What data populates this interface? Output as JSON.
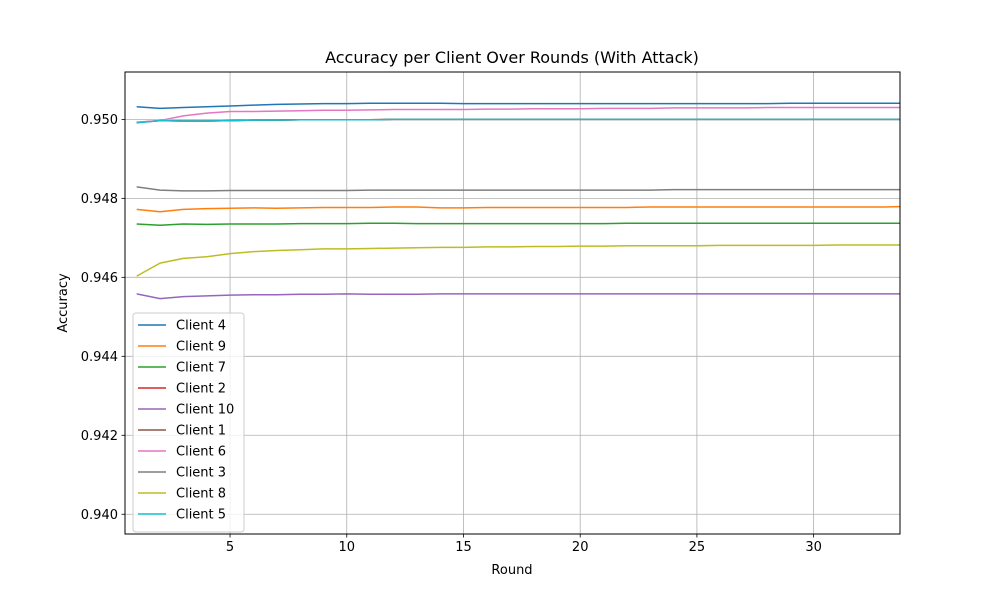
{
  "chart_data": {
    "type": "line",
    "title": "Accuracy per Client Over Rounds (With Attack)",
    "xlabel": "Round",
    "ylabel": "Accuracy",
    "xlim": [
      0.5,
      33.7
    ],
    "ylim": [
      0.9395,
      0.9512
    ],
    "xticks": [
      5,
      10,
      15,
      20,
      25,
      30
    ],
    "yticks": [
      0.94,
      0.942,
      0.944,
      0.946,
      0.948,
      0.95
    ],
    "ytick_labels": [
      "0.940",
      "0.942",
      "0.944",
      "0.946",
      "0.948",
      "0.950"
    ],
    "grid": true,
    "legend_position": "lower-left",
    "x": [
      1,
      2,
      3,
      4,
      5,
      6,
      7,
      8,
      9,
      10,
      11,
      12,
      13,
      14,
      15,
      16,
      17,
      18,
      19,
      20,
      21,
      22,
      23,
      24,
      25,
      26,
      27,
      28,
      29,
      30,
      31,
      32,
      33,
      33.7
    ],
    "series": [
      {
        "name": "Client 4",
        "color": "#1f77b4",
        "values": [
          0.95032,
          0.95028,
          0.9503,
          0.95032,
          0.95034,
          0.95036,
          0.95038,
          0.95039,
          0.9504,
          0.9504,
          0.95041,
          0.95041,
          0.95041,
          0.95041,
          0.9504,
          0.9504,
          0.9504,
          0.9504,
          0.9504,
          0.9504,
          0.9504,
          0.9504,
          0.9504,
          0.9504,
          0.9504,
          0.9504,
          0.9504,
          0.9504,
          0.95041,
          0.95041,
          0.95041,
          0.95041,
          0.95041,
          0.95041
        ]
      },
      {
        "name": "Client 9",
        "color": "#ff7f0e",
        "values": [
          0.94772,
          0.94766,
          0.94772,
          0.94774,
          0.94775,
          0.94776,
          0.94775,
          0.94776,
          0.94777,
          0.94777,
          0.94777,
          0.94778,
          0.94778,
          0.94776,
          0.94776,
          0.94777,
          0.94777,
          0.94777,
          0.94777,
          0.94777,
          0.94777,
          0.94777,
          0.94778,
          0.94778,
          0.94778,
          0.94778,
          0.94778,
          0.94778,
          0.94778,
          0.94778,
          0.94778,
          0.94778,
          0.94778,
          0.94779
        ]
      },
      {
        "name": "Client 7",
        "color": "#2ca02c",
        "values": [
          0.94735,
          0.94732,
          0.94735,
          0.94734,
          0.94735,
          0.94735,
          0.94735,
          0.94736,
          0.94736,
          0.94736,
          0.94737,
          0.94737,
          0.94736,
          0.94736,
          0.94736,
          0.94736,
          0.94736,
          0.94736,
          0.94736,
          0.94736,
          0.94736,
          0.94737,
          0.94737,
          0.94737,
          0.94737,
          0.94737,
          0.94737,
          0.94737,
          0.94737,
          0.94737,
          0.94737,
          0.94737,
          0.94737,
          0.94737
        ]
      },
      {
        "name": "Client 2",
        "color": "#d62728",
        "values": [
          0.94992,
          0.94997,
          0.94996,
          0.94996,
          0.94997,
          0.94998,
          0.94998,
          0.94999,
          0.94999,
          0.94999,
          0.94999,
          0.95,
          0.95,
          0.95,
          0.95,
          0.95,
          0.95,
          0.95,
          0.95,
          0.95,
          0.95,
          0.95,
          0.95,
          0.95,
          0.95,
          0.95,
          0.95,
          0.95,
          0.95,
          0.95,
          0.95,
          0.95,
          0.95,
          0.95
        ]
      },
      {
        "name": "Client 10",
        "color": "#9467bd",
        "values": [
          0.94558,
          0.94546,
          0.94551,
          0.94553,
          0.94555,
          0.94556,
          0.94556,
          0.94557,
          0.94557,
          0.94558,
          0.94557,
          0.94557,
          0.94557,
          0.94558,
          0.94558,
          0.94558,
          0.94558,
          0.94558,
          0.94558,
          0.94558,
          0.94558,
          0.94558,
          0.94558,
          0.94558,
          0.94558,
          0.94558,
          0.94558,
          0.94558,
          0.94558,
          0.94558,
          0.94558,
          0.94558,
          0.94558,
          0.94558
        ]
      },
      {
        "name": "Client 1",
        "color": "#8c564b",
        "values": [
          0.94992,
          0.94997,
          0.94996,
          0.94996,
          0.94997,
          0.94998,
          0.94998,
          0.94999,
          0.94999,
          0.94999,
          0.94999,
          0.95,
          0.95,
          0.95,
          0.95,
          0.95,
          0.95,
          0.95,
          0.95,
          0.95,
          0.95,
          0.95,
          0.95,
          0.95,
          0.95,
          0.95,
          0.95,
          0.95,
          0.95,
          0.95,
          0.95,
          0.95,
          0.95,
          0.95
        ]
      },
      {
        "name": "Client 6",
        "color": "#e377c2",
        "values": [
          0.94993,
          0.94997,
          0.95009,
          0.95016,
          0.9502,
          0.9502,
          0.95021,
          0.95022,
          0.95023,
          0.95023,
          0.95024,
          0.95025,
          0.95025,
          0.95025,
          0.95025,
          0.95026,
          0.95026,
          0.95027,
          0.95027,
          0.95027,
          0.95028,
          0.95028,
          0.95028,
          0.95029,
          0.95029,
          0.95029,
          0.95029,
          0.9503,
          0.9503,
          0.9503,
          0.9503,
          0.9503,
          0.9503,
          0.9503
        ]
      },
      {
        "name": "Client 3",
        "color": "#7f7f7f",
        "values": [
          0.94829,
          0.94821,
          0.94819,
          0.94819,
          0.9482,
          0.9482,
          0.9482,
          0.9482,
          0.9482,
          0.9482,
          0.94821,
          0.94821,
          0.94821,
          0.94821,
          0.94821,
          0.94821,
          0.94821,
          0.94821,
          0.94821,
          0.94821,
          0.94821,
          0.94821,
          0.94821,
          0.94822,
          0.94822,
          0.94822,
          0.94822,
          0.94822,
          0.94822,
          0.94822,
          0.94822,
          0.94822,
          0.94822,
          0.94822
        ]
      },
      {
        "name": "Client 8",
        "color": "#bcbd22",
        "values": [
          0.94603,
          0.94636,
          0.94648,
          0.94652,
          0.9466,
          0.94665,
          0.94668,
          0.9467,
          0.94672,
          0.94672,
          0.94673,
          0.94674,
          0.94675,
          0.94676,
          0.94676,
          0.94677,
          0.94677,
          0.94678,
          0.94678,
          0.94679,
          0.94679,
          0.9468,
          0.9468,
          0.9468,
          0.9468,
          0.94681,
          0.94681,
          0.94681,
          0.94681,
          0.94681,
          0.94682,
          0.94682,
          0.94682,
          0.94682
        ]
      },
      {
        "name": "Client 5",
        "color": "#17becf",
        "values": [
          0.94991,
          0.94997,
          0.94996,
          0.94996,
          0.94997,
          0.94998,
          0.94998,
          0.94999,
          0.94999,
          0.94999,
          0.94999,
          0.95,
          0.95,
          0.95,
          0.95,
          0.95,
          0.95,
          0.95,
          0.95,
          0.95,
          0.95,
          0.95,
          0.95,
          0.95,
          0.95,
          0.95,
          0.95,
          0.95,
          0.95,
          0.95,
          0.95,
          0.95,
          0.95,
          0.95
        ]
      }
    ]
  }
}
